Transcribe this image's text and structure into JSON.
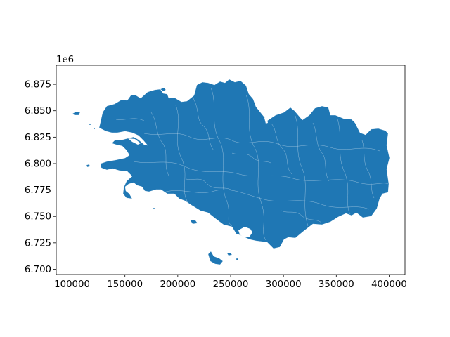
{
  "figure": {
    "background": "#ffffff",
    "fill_color": "#1f77b4",
    "boundary_color": "#ffffff",
    "axis_color": "#000000"
  },
  "chart_data": {
    "type": "map",
    "title": "",
    "xlabel": "",
    "ylabel": "",
    "y_offset_label": "1e6",
    "xlim": [
      85000,
      415000
    ],
    "ylim": [
      6695000,
      6893000
    ],
    "x_ticks": [
      100000,
      150000,
      200000,
      250000,
      300000,
      350000,
      400000
    ],
    "x_tick_labels": [
      "100000",
      "150000",
      "200000",
      "250000",
      "300000",
      "350000",
      "400000"
    ],
    "y_ticks": [
      6700000,
      6725000,
      6750000,
      6775000,
      6800000,
      6825000,
      6850000,
      6875000
    ],
    "y_tick_labels": [
      "6.700",
      "6.725",
      "6.750",
      "6.775",
      "6.800",
      "6.825",
      "6.850",
      "6.875"
    ],
    "grid": false,
    "legend": "none"
  }
}
